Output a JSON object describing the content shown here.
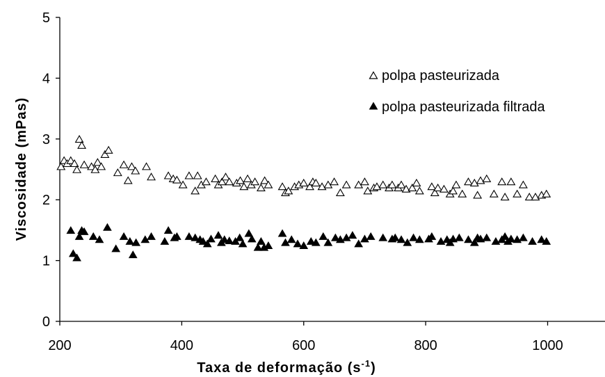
{
  "chart_data": {
    "type": "scatter",
    "xlabel": "Taxa de deformação (s",
    "xlabel_superscript": "-1",
    "xlabel_suffix": ")",
    "ylabel": "Viscosidade (mPas)",
    "xlim": [
      200,
      1100
    ],
    "ylim": [
      0,
      5
    ],
    "x_ticks": [
      200,
      400,
      600,
      800,
      1000
    ],
    "x_tick_labels": [
      "200",
      "400",
      "600",
      "800",
      "1000"
    ],
    "y_ticks": [
      0,
      1,
      2,
      3,
      4,
      5
    ],
    "y_tick_labels": [
      "0",
      "1",
      "2",
      "3",
      "4",
      "5"
    ],
    "grid": false,
    "legend_position": "top-right",
    "series": [
      {
        "name": "polpa pasteurizada",
        "marker": "open-triangle",
        "color": "#000000",
        "x": [
          202,
          207,
          212,
          218,
          224,
          228,
          232,
          236,
          240,
          252,
          258,
          262,
          268,
          274,
          280,
          295,
          305,
          312,
          318,
          324,
          342,
          350,
          378,
          386,
          392,
          402,
          412,
          422,
          426,
          432,
          440,
          455,
          460,
          466,
          472,
          478,
          490,
          496,
          502,
          508,
          514,
          520,
          530,
          536,
          542,
          565,
          570,
          575,
          585,
          592,
          600,
          610,
          615,
          620,
          630,
          640,
          650,
          660,
          670,
          690,
          700,
          705,
          715,
          720,
          730,
          740,
          745,
          755,
          760,
          768,
          778,
          785,
          790,
          810,
          815,
          820,
          830,
          840,
          845,
          850,
          860,
          870,
          880,
          885,
          890,
          900,
          912,
          925,
          930,
          940,
          950,
          960,
          970,
          980,
          990,
          998
        ],
        "y": [
          2.55,
          2.65,
          2.6,
          2.65,
          2.6,
          2.5,
          3.0,
          2.9,
          2.58,
          2.55,
          2.5,
          2.62,
          2.55,
          2.75,
          2.82,
          2.45,
          2.58,
          2.32,
          2.55,
          2.48,
          2.55,
          2.38,
          2.4,
          2.35,
          2.33,
          2.25,
          2.4,
          2.15,
          2.4,
          2.25,
          2.3,
          2.35,
          2.25,
          2.3,
          2.38,
          2.3,
          2.28,
          2.32,
          2.22,
          2.35,
          2.25,
          2.3,
          2.2,
          2.32,
          2.25,
          2.22,
          2.12,
          2.15,
          2.22,
          2.25,
          2.28,
          2.22,
          2.3,
          2.28,
          2.22,
          2.25,
          2.3,
          2.12,
          2.25,
          2.25,
          2.3,
          2.15,
          2.2,
          2.22,
          2.25,
          2.2,
          2.25,
          2.2,
          2.25,
          2.18,
          2.2,
          2.28,
          2.15,
          2.22,
          2.12,
          2.2,
          2.18,
          2.1,
          2.15,
          2.25,
          2.1,
          2.3,
          2.28,
          2.08,
          2.32,
          2.35,
          2.1,
          2.3,
          2.05,
          2.3,
          2.1,
          2.25,
          2.05,
          2.05,
          2.08,
          2.1
        ]
      },
      {
        "name": "polpa pasteurizada filtrada",
        "marker": "filled-triangle",
        "color": "#000000",
        "x": [
          218,
          222,
          228,
          232,
          236,
          240,
          255,
          265,
          278,
          292,
          305,
          315,
          320,
          325,
          340,
          350,
          372,
          378,
          388,
          392,
          412,
          422,
          430,
          435,
          442,
          448,
          460,
          465,
          470,
          478,
          488,
          495,
          500,
          510,
          515,
          525,
          530,
          535,
          542,
          565,
          570,
          580,
          590,
          600,
          612,
          620,
          632,
          640,
          652,
          660,
          670,
          680,
          690,
          700,
          710,
          730,
          745,
          750,
          760,
          770,
          780,
          790,
          805,
          810,
          825,
          835,
          840,
          845,
          855,
          870,
          880,
          885,
          890,
          900,
          915,
          925,
          930,
          935,
          940,
          950,
          960,
          975,
          990,
          998
        ],
        "y": [
          1.5,
          1.12,
          1.05,
          1.4,
          1.5,
          1.48,
          1.4,
          1.35,
          1.55,
          1.2,
          1.4,
          1.32,
          1.1,
          1.3,
          1.35,
          1.4,
          1.32,
          1.5,
          1.38,
          1.4,
          1.4,
          1.38,
          1.35,
          1.32,
          1.28,
          1.36,
          1.42,
          1.3,
          1.35,
          1.33,
          1.32,
          1.38,
          1.28,
          1.45,
          1.36,
          1.22,
          1.32,
          1.22,
          1.25,
          1.45,
          1.3,
          1.35,
          1.28,
          1.25,
          1.32,
          1.3,
          1.4,
          1.3,
          1.38,
          1.35,
          1.38,
          1.42,
          1.28,
          1.36,
          1.4,
          1.38,
          1.36,
          1.38,
          1.35,
          1.3,
          1.38,
          1.35,
          1.36,
          1.4,
          1.32,
          1.35,
          1.3,
          1.36,
          1.38,
          1.35,
          1.3,
          1.38,
          1.36,
          1.38,
          1.32,
          1.35,
          1.4,
          1.32,
          1.36,
          1.35,
          1.38,
          1.32,
          1.35,
          1.32
        ]
      }
    ]
  }
}
